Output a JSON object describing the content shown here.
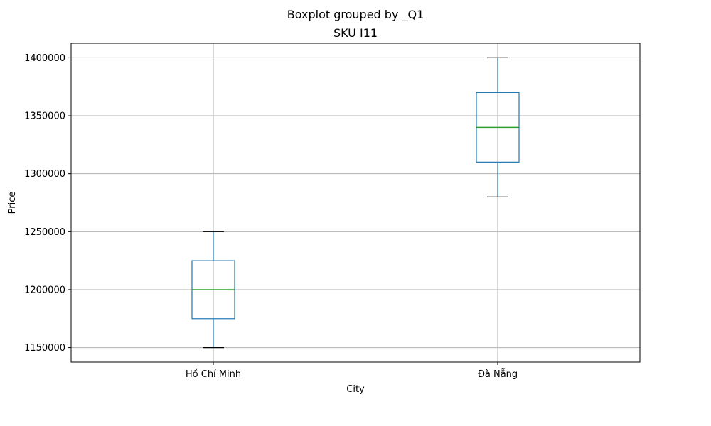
{
  "chart_data": {
    "type": "boxplot",
    "suptitle": "Boxplot grouped by _Q1",
    "title": "SKU I11",
    "xlabel": "City",
    "ylabel": "Price",
    "ylim": [
      1137500,
      1412500
    ],
    "yticks": [
      1150000,
      1200000,
      1250000,
      1300000,
      1350000,
      1400000
    ],
    "grid": true,
    "categories": [
      "Hồ Chí Minh",
      "Đà Nẵng"
    ],
    "boxes": [
      {
        "category": "Hồ Chí Minh",
        "whisker_low": 1150000,
        "q1": 1175000,
        "median": 1200000,
        "q3": 1225000,
        "whisker_high": 1250000
      },
      {
        "category": "Đà Nẵng",
        "whisker_low": 1280000,
        "q1": 1310000,
        "median": 1340000,
        "q3": 1370000,
        "whisker_high": 1400000
      }
    ],
    "colors": {
      "box": "#1f77b4",
      "median": "#2ca02c",
      "cap": "#000000",
      "grid": "#b0b0b0",
      "axes": "#000000"
    }
  }
}
